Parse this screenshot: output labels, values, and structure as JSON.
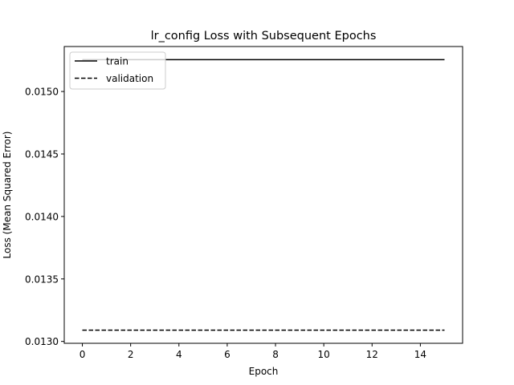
{
  "chart_data": {
    "type": "line",
    "title": "lr_config Loss with Subsequent Epochs",
    "xlabel": "Epoch",
    "ylabel": "Loss (Mean Squared Error)",
    "xlim": [
      -0.75,
      15.75
    ],
    "ylim": [
      0.012985,
      0.01536
    ],
    "x_ticks": [
      0,
      2,
      4,
      6,
      8,
      10,
      12,
      14
    ],
    "y_ticks": [
      0.013,
      0.0135,
      0.014,
      0.0145,
      0.015
    ],
    "y_tick_labels": [
      "0.0130",
      "0.0135",
      "0.0140",
      "0.0145",
      "0.0150"
    ],
    "x": [
      0,
      1,
      2,
      3,
      4,
      5,
      6,
      7,
      8,
      9,
      10,
      11,
      12,
      13,
      14,
      15
    ],
    "series": [
      {
        "name": "train",
        "style": "solid",
        "color": "#000000",
        "values": [
          0.015255,
          0.015255,
          0.015255,
          0.015255,
          0.015255,
          0.015255,
          0.015255,
          0.015255,
          0.015255,
          0.015255,
          0.015255,
          0.015255,
          0.015255,
          0.015255,
          0.015255,
          0.015255
        ]
      },
      {
        "name": "validation",
        "style": "dashed",
        "color": "#000000",
        "values": [
          0.01309,
          0.01309,
          0.01309,
          0.01309,
          0.01309,
          0.01309,
          0.01309,
          0.01309,
          0.01309,
          0.01309,
          0.01309,
          0.01309,
          0.01309,
          0.01309,
          0.01309,
          0.01309
        ]
      }
    ],
    "grid": false,
    "legend_position": "upper-left"
  }
}
